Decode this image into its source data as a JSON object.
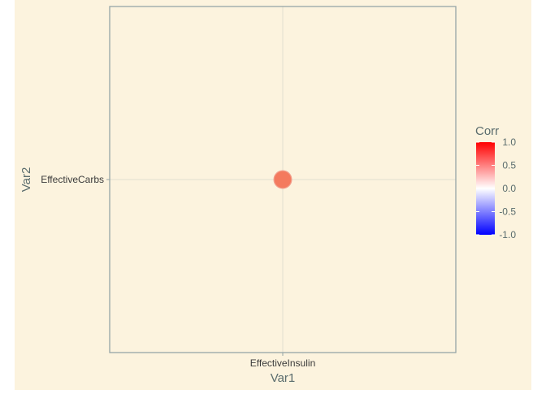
{
  "chart_data": {
    "type": "scatter",
    "x_categories": [
      "EffectiveInsulin"
    ],
    "y_categories": [
      "EffectiveCarbs"
    ],
    "points": [
      {
        "x": "EffectiveInsulin",
        "y": "EffectiveCarbs",
        "value": 0.65
      }
    ],
    "xlabel": "Var1",
    "ylabel": "Var2",
    "legend": {
      "title": "Corr",
      "position": "right",
      "ticks": [
        "1.0",
        "0.5",
        "0.0",
        "-0.5",
        "-1.0"
      ],
      "tick_values": [
        1.0,
        0.5,
        0.0,
        -0.5,
        -1.0
      ],
      "range": [
        -1.0,
        1.0
      ]
    },
    "grid": true,
    "colors": {
      "background": "#fcf3de",
      "panel_border": "#95a5a6",
      "grid": "#e2dfd0",
      "text": "#5a6c6d",
      "tick_text": "#3a3a3a",
      "point": "#f47a5e",
      "point_outline": "#f29e8c",
      "low": "#0000ff",
      "mid": "#ffffff",
      "high": "#ff0000"
    }
  }
}
